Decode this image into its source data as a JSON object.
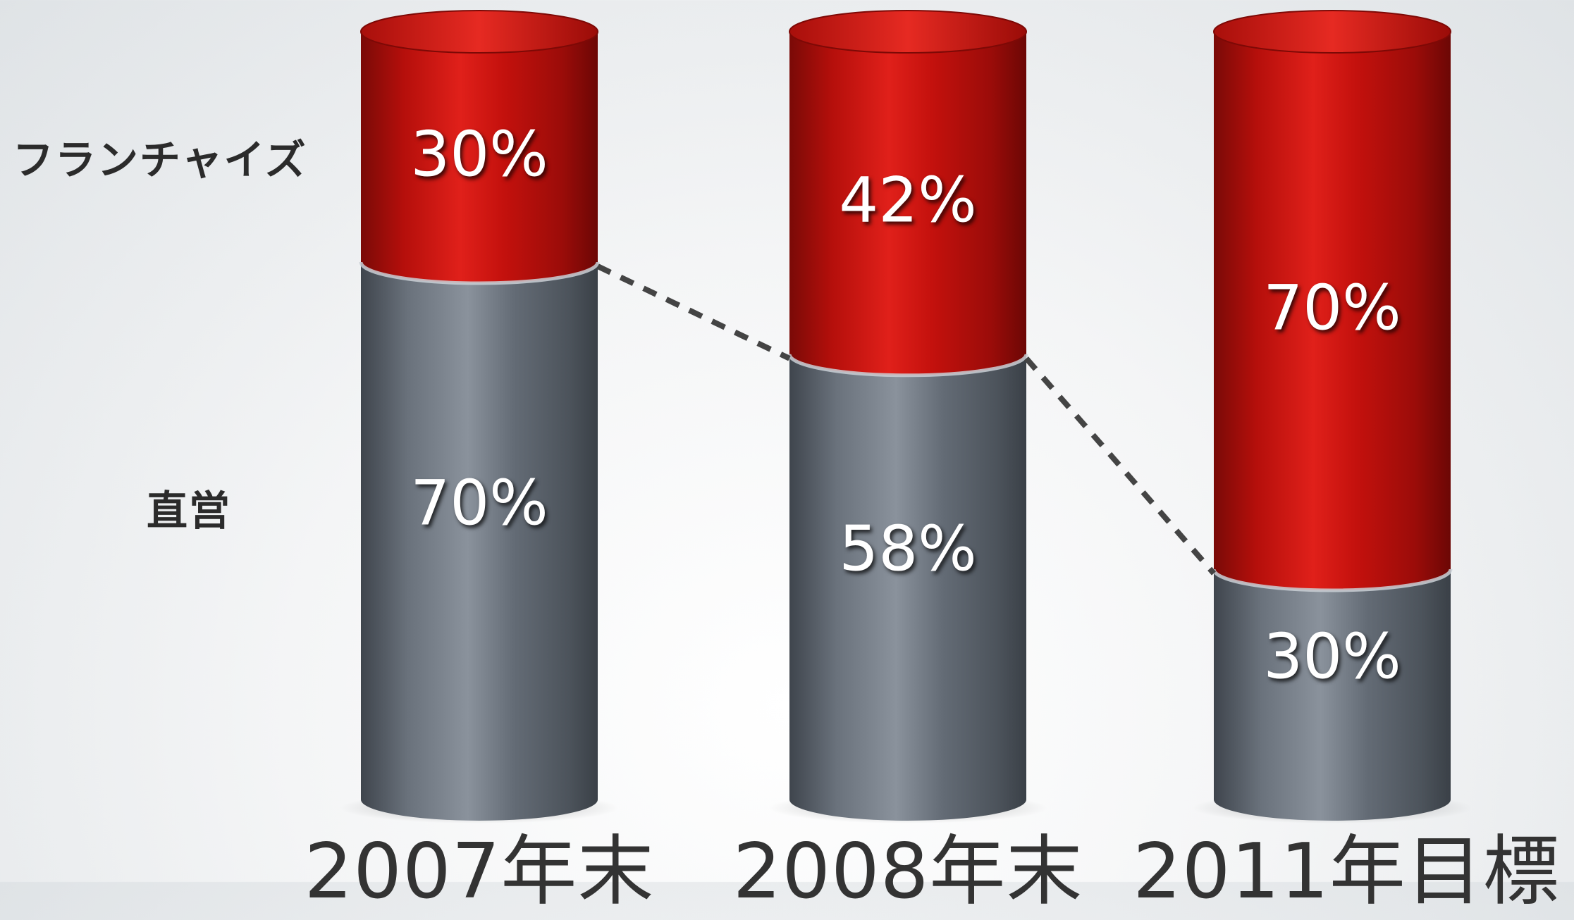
{
  "legend": {
    "franchise": "フランチャイズ",
    "direct": "直営"
  },
  "colors": {
    "franchise": "#c4100d",
    "direct": "#5e6670",
    "connector": "#444444"
  },
  "chart_data": {
    "type": "bar",
    "stacked": true,
    "categories": [
      "2007年末",
      "2008年末",
      "2011年目標"
    ],
    "series": [
      {
        "name": "直営",
        "values": [
          70,
          58,
          30
        ],
        "labels": [
          "70%",
          "58%",
          "30%"
        ]
      },
      {
        "name": "フランチャイズ",
        "values": [
          30,
          42,
          70
        ],
        "labels": [
          "30%",
          "42%",
          "70%"
        ]
      }
    ],
    "ylim": [
      0,
      100
    ],
    "grid": false,
    "connector": "dashed line joining top of 直営 segments"
  }
}
